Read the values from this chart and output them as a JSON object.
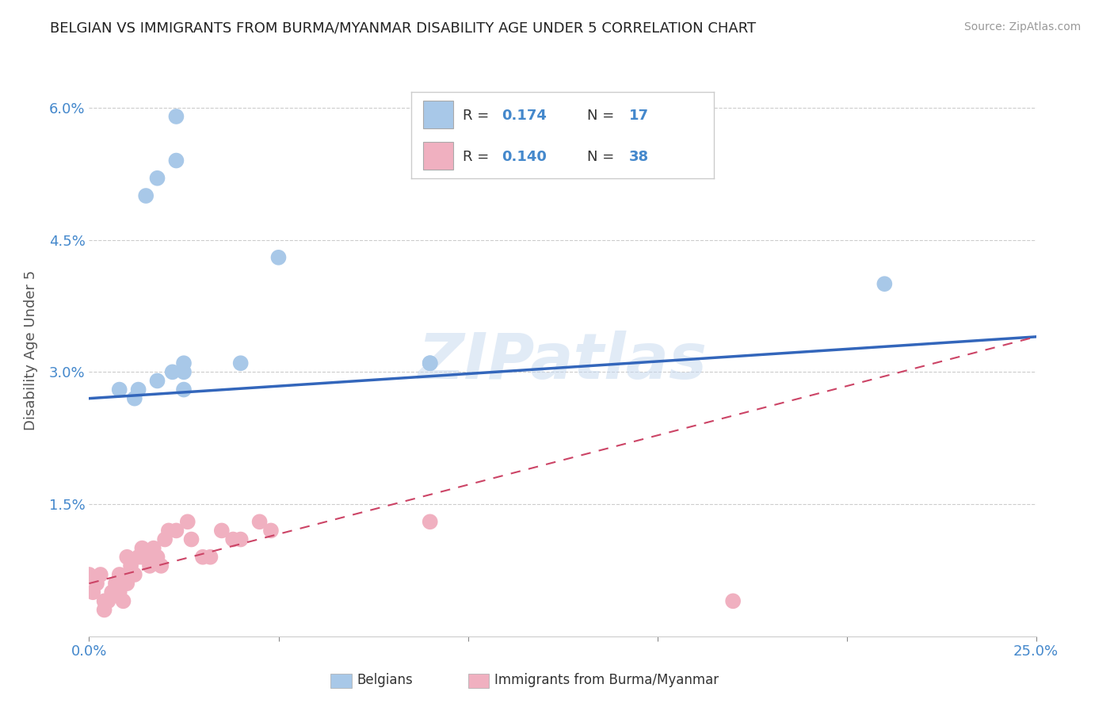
{
  "title": "BELGIAN VS IMMIGRANTS FROM BURMA/MYANMAR DISABILITY AGE UNDER 5 CORRELATION CHART",
  "source": "Source: ZipAtlas.com",
  "ylabel": "Disability Age Under 5",
  "xlim": [
    0.0,
    0.25
  ],
  "ylim": [
    0.0,
    0.065
  ],
  "xticks": [
    0.0,
    0.05,
    0.1,
    0.15,
    0.2,
    0.25
  ],
  "yticks": [
    0.0,
    0.015,
    0.03,
    0.045,
    0.06
  ],
  "ytick_labels": [
    "",
    "1.5%",
    "3.0%",
    "4.5%",
    "6.0%"
  ],
  "xtick_labels": [
    "0.0%",
    "",
    "",
    "",
    "",
    "25.0%"
  ],
  "grid_color": "#cccccc",
  "background_color": "#ffffff",
  "watermark": "ZIPatlas",
  "legend_R1": "0.174",
  "legend_N1": "17",
  "legend_R2": "0.140",
  "legend_N2": "38",
  "blue_color": "#a8c8e8",
  "pink_color": "#f0b0c0",
  "line_blue": "#3366bb",
  "line_pink": "#cc4466",
  "title_color": "#222222",
  "axis_label_color": "#4488cc",
  "blue_line_x0": 0.0,
  "blue_line_y0": 0.027,
  "blue_line_x1": 0.25,
  "blue_line_y1": 0.034,
  "pink_line_x0": 0.0,
  "pink_line_y0": 0.006,
  "pink_line_x1": 0.25,
  "pink_line_y1": 0.034,
  "blue_points_x": [
    0.008,
    0.012,
    0.015,
    0.018,
    0.023,
    0.023,
    0.05,
    0.09,
    0.09,
    0.21,
    0.018,
    0.022,
    0.025,
    0.025,
    0.025,
    0.04,
    0.013
  ],
  "blue_points_y": [
    0.028,
    0.027,
    0.05,
    0.052,
    0.059,
    0.054,
    0.043,
    0.031,
    0.031,
    0.04,
    0.029,
    0.03,
    0.031,
    0.03,
    0.028,
    0.031,
    0.028
  ],
  "pink_points_x": [
    0.0,
    0.001,
    0.002,
    0.003,
    0.004,
    0.004,
    0.005,
    0.006,
    0.007,
    0.008,
    0.008,
    0.009,
    0.01,
    0.01,
    0.011,
    0.012,
    0.013,
    0.014,
    0.014,
    0.015,
    0.016,
    0.017,
    0.018,
    0.019,
    0.02,
    0.021,
    0.023,
    0.026,
    0.027,
    0.03,
    0.032,
    0.035,
    0.038,
    0.04,
    0.045,
    0.048,
    0.09,
    0.17
  ],
  "pink_points_y": [
    0.007,
    0.005,
    0.006,
    0.007,
    0.004,
    0.003,
    0.004,
    0.005,
    0.006,
    0.005,
    0.007,
    0.004,
    0.009,
    0.006,
    0.008,
    0.007,
    0.009,
    0.009,
    0.01,
    0.009,
    0.008,
    0.01,
    0.009,
    0.008,
    0.011,
    0.012,
    0.012,
    0.013,
    0.011,
    0.009,
    0.009,
    0.012,
    0.011,
    0.011,
    0.013,
    0.012,
    0.013,
    0.004
  ]
}
